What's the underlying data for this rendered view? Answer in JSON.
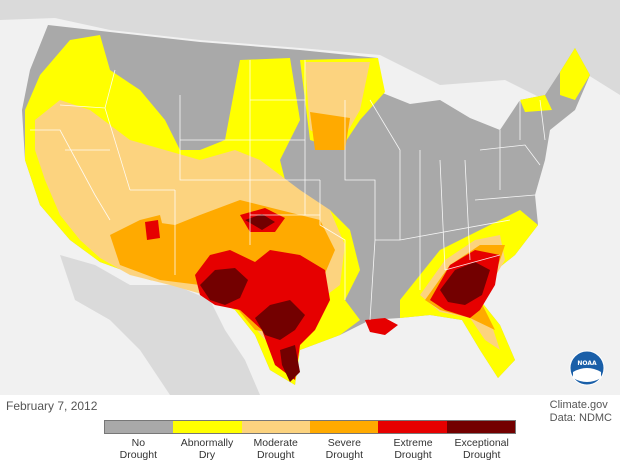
{
  "date": "February 7, 2012",
  "credit": {
    "source": "Climate.gov",
    "data": "Data: NDMC"
  },
  "logo_text": "NOAA",
  "legend": [
    {
      "line1": "No",
      "line2": "Drought",
      "color": "#a9a9a9"
    },
    {
      "line1": "Abnormally",
      "line2": "Dry",
      "color": "#ffff00"
    },
    {
      "line1": "Moderate",
      "line2": "Drought",
      "color": "#fcd37f"
    },
    {
      "line1": "Severe",
      "line2": "Drought",
      "color": "#ffaa00"
    },
    {
      "line1": "Extreme",
      "line2": "Drought",
      "color": "#e60000"
    },
    {
      "line1": "Exceptional",
      "line2": "Drought",
      "color": "#730000"
    }
  ],
  "colors": {
    "ocean": "#f1f1f1",
    "land_neighbors": "#dadada",
    "border": "#ffffff"
  }
}
